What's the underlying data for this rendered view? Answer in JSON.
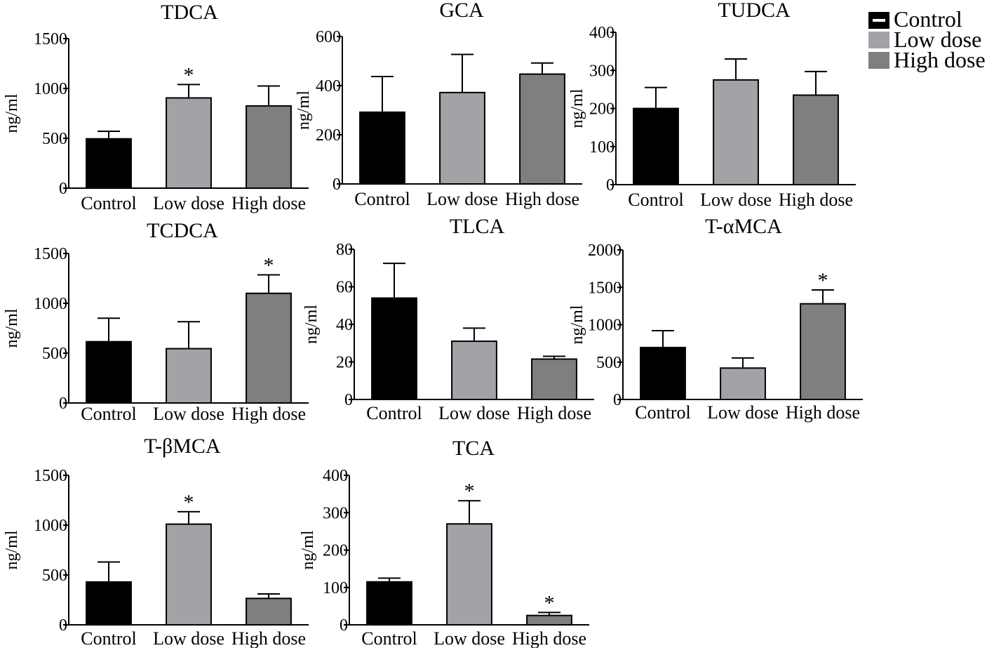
{
  "colors": {
    "control": "#000000",
    "low_dose": "#a3a3a7",
    "high_dose": "#7f7f7f",
    "axis": "#000000"
  },
  "legend": {
    "entries": [
      "Control",
      "Low dose",
      "High dose"
    ]
  },
  "chart_data": [
    {
      "type": "bar",
      "title": "TDCA",
      "ylabel": "ng/ml",
      "categories": [
        "Control",
        "Low dose",
        "High dose"
      ],
      "values": [
        495,
        905,
        825
      ],
      "errors": [
        75,
        135,
        200
      ],
      "significant": [
        "",
        "*",
        ""
      ],
      "ylim": [
        0,
        1500
      ],
      "yticks": [
        0,
        500,
        1000,
        1500
      ]
    },
    {
      "type": "bar",
      "title": "GCA",
      "ylabel": "ng/ml",
      "categories": [
        "Control",
        "Low dose",
        "High dose"
      ],
      "values": [
        292,
        372,
        447
      ],
      "errors": [
        145,
        155,
        45
      ],
      "significant": [
        "",
        "",
        ""
      ],
      "ylim": [
        0,
        600
      ],
      "yticks": [
        0,
        200,
        400,
        600
      ]
    },
    {
      "type": "bar",
      "title": "TUDCA",
      "ylabel": "ng/ml",
      "categories": [
        "Control",
        "Low dose",
        "High dose"
      ],
      "values": [
        200,
        275,
        235
      ],
      "errors": [
        55,
        55,
        62
      ],
      "significant": [
        "",
        "",
        ""
      ],
      "ylim": [
        0,
        400
      ],
      "yticks": [
        0,
        100,
        200,
        300,
        400
      ]
    },
    {
      "type": "bar",
      "title": "TCDCA",
      "ylabel": "ng/ml",
      "categories": [
        "Control",
        "Low dose",
        "High dose"
      ],
      "values": [
        615,
        545,
        1100
      ],
      "errors": [
        235,
        270,
        185
      ],
      "significant": [
        "",
        "",
        "*"
      ],
      "ylim": [
        0,
        1500
      ],
      "yticks": [
        0,
        500,
        1000,
        1500
      ]
    },
    {
      "type": "bar",
      "title": "TLCA",
      "ylabel": "ng/ml",
      "categories": [
        "Control",
        "Low dose",
        "High dose"
      ],
      "values": [
        54,
        31,
        21.5
      ],
      "errors": [
        18.5,
        7,
        1.5
      ],
      "significant": [
        "",
        "",
        ""
      ],
      "ylim": [
        0,
        80
      ],
      "yticks": [
        0,
        20,
        40,
        60,
        80
      ]
    },
    {
      "type": "bar",
      "title": "T-αMCA",
      "ylabel": "ng/ml",
      "categories": [
        "Control",
        "Low dose",
        "High dose"
      ],
      "values": [
        695,
        420,
        1280
      ],
      "errors": [
        225,
        135,
        185
      ],
      "significant": [
        "",
        "",
        "*"
      ],
      "ylim": [
        0,
        2000
      ],
      "yticks": [
        0,
        500,
        1000,
        1500,
        2000
      ]
    },
    {
      "type": "bar",
      "title": "T-βMCA",
      "ylabel": "ng/ml",
      "categories": [
        "Control",
        "Low dose",
        "High dose"
      ],
      "values": [
        430,
        1010,
        265
      ],
      "errors": [
        200,
        125,
        45
      ],
      "significant": [
        "",
        "*",
        ""
      ],
      "ylim": [
        0,
        1500
      ],
      "yticks": [
        0,
        500,
        1000,
        1500
      ]
    },
    {
      "type": "bar",
      "title": "TCA",
      "ylabel": "ng/ml",
      "categories": [
        "Control",
        "Low dose",
        "High dose"
      ],
      "values": [
        115,
        270,
        25
      ],
      "errors": [
        10,
        62,
        8
      ],
      "significant": [
        "",
        "*",
        "*"
      ],
      "ylim": [
        0,
        400
      ],
      "yticks": [
        0,
        100,
        200,
        300,
        400
      ]
    }
  ]
}
